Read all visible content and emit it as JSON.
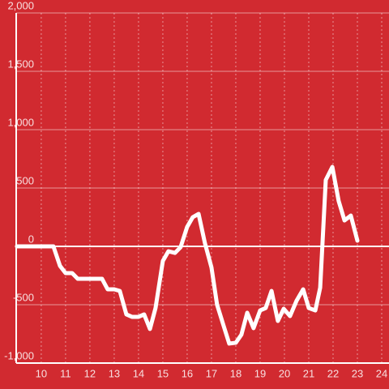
{
  "chart_data": {
    "type": "line",
    "x": [
      9,
      10.5,
      10.77,
      11,
      11.27,
      11.5,
      12.5,
      12.73,
      13,
      13.23,
      13.5,
      13.73,
      14,
      14.23,
      14.47,
      14.7,
      15,
      15.23,
      15.5,
      15.73,
      16,
      16.23,
      16.47,
      16.73,
      17,
      17.23,
      17.5,
      17.73,
      18,
      18.23,
      18.47,
      18.73,
      19,
      19.23,
      19.47,
      19.73,
      19.97,
      20.23,
      20.5,
      20.77,
      21,
      21.27,
      21.47,
      21.7,
      21.97,
      22.23,
      22.47,
      22.73,
      23
    ],
    "series": [
      {
        "color": "#ffffff",
        "values": [
          0,
          0,
          -167,
          -229,
          -229,
          -278,
          -278,
          -368,
          -368,
          -382,
          -583,
          -604,
          -604,
          -583,
          -708,
          -528,
          -125,
          -42,
          -56,
          -7,
          167,
          250,
          278,
          28,
          -181,
          -500,
          -681,
          -833,
          -826,
          -757,
          -569,
          -701,
          -549,
          -528,
          -382,
          -639,
          -535,
          -597,
          -465,
          -368,
          -528,
          -549,
          -354,
          569,
          681,
          389,
          222,
          264,
          49
        ]
      }
    ],
    "xlim": [
      8.97,
      24.3
    ],
    "xticks": [
      10,
      11,
      12,
      13,
      14,
      15,
      16,
      17,
      18,
      19,
      20,
      21,
      22,
      23,
      24
    ],
    "ylim": [
      -1000,
      2000
    ],
    "yticks": [
      {
        "value": -1000,
        "label": "-1,000"
      },
      -500,
      0,
      500,
      {
        "value": 1000,
        "label": "1,000"
      },
      {
        "value": 1500,
        "label": "1,500"
      },
      {
        "value": 2000,
        "label": "2,000"
      }
    ],
    "grid": true
  }
}
